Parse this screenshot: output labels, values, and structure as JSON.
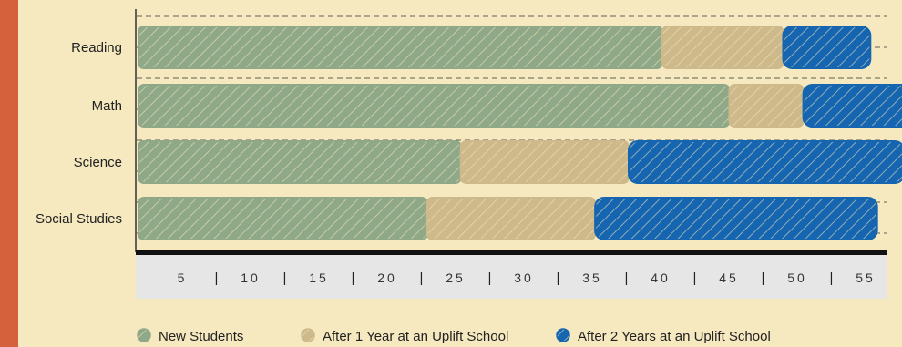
{
  "colors": {
    "background": "#f6e8bf",
    "accent_stripe": "#d4613b",
    "axis_panel": "#e6e6e6"
  },
  "chart_data": {
    "type": "bar",
    "orientation": "horizontal",
    "stacked": true,
    "style": "hand-drawn scribble fill",
    "categories": [
      "Reading",
      "Math",
      "Science",
      "Social Studies"
    ],
    "series": [
      {
        "name": "New Students",
        "color": "#8fa888",
        "values": [
          39,
          44,
          24,
          21.5
        ]
      },
      {
        "name": "After 1 Year at an Uplift School",
        "color": "#cdb98a",
        "values": [
          9,
          5.5,
          12.5,
          12.5
        ]
      },
      {
        "name": "After 2 Years at an Uplift School",
        "color": "#1565b0",
        "values": [
          6.5,
          8.5,
          20.5,
          21
        ]
      }
    ],
    "x_ticks": [
      "5",
      "10",
      "15",
      "20",
      "25",
      "30",
      "35",
      "40",
      "45",
      "50",
      "55"
    ],
    "xlim": [
      0,
      55.7
    ],
    "grid": true,
    "legend_position": "bottom"
  }
}
